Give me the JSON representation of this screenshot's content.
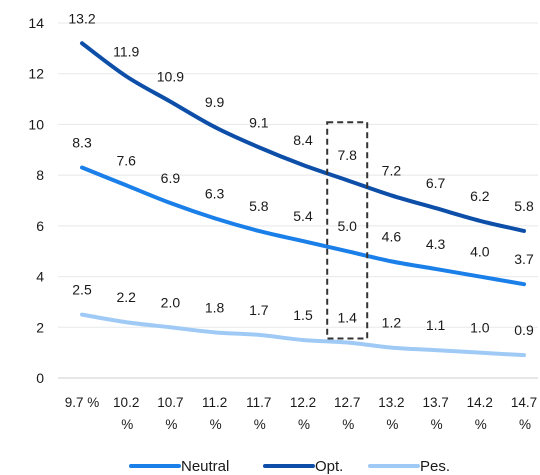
{
  "chart_data": {
    "type": "line",
    "x": [
      "9.7 %",
      "10.2 %",
      "10.7 %",
      "11.2 %",
      "11.7 %",
      "12.2 %",
      "12.7 %",
      "13.2 %",
      "13.7 %",
      "14.2 %",
      "14.7 %"
    ],
    "series": [
      {
        "name": "Neutral",
        "color": "#1a7fe8",
        "values": [
          8.3,
          7.6,
          6.9,
          6.3,
          5.8,
          5.4,
          5.0,
          4.6,
          4.3,
          4.0,
          3.7
        ],
        "labels": [
          "8.3",
          "7.6",
          "6.9",
          "6.3",
          "5.8",
          "5.4",
          "5.0",
          "4.6",
          "4.3",
          "4.0",
          "3.7"
        ]
      },
      {
        "name": "Opt.",
        "color": "#0d4fa8",
        "values": [
          13.2,
          11.9,
          10.9,
          9.9,
          9.1,
          8.4,
          7.8,
          7.2,
          6.7,
          6.2,
          5.8
        ],
        "labels": [
          "13.2",
          "11.9",
          "10.9",
          "9.9",
          "9.1",
          "8.4",
          "7.8",
          "7.2",
          "6.7",
          "6.2",
          "5.8"
        ]
      },
      {
        "name": "Pes.",
        "color": "#9fcaf5",
        "values": [
          2.5,
          2.2,
          2.0,
          1.8,
          1.7,
          1.5,
          1.4,
          1.2,
          1.1,
          1.0,
          0.9
        ],
        "labels": [
          "2.5",
          "2.2",
          "2.0",
          "1.8",
          "1.7",
          "1.5",
          "1.4",
          "1.2",
          "1.1",
          "1.0",
          "0.9"
        ]
      }
    ],
    "yticks": [
      0,
      2,
      4,
      6,
      8,
      10,
      12,
      14
    ],
    "ytick_labels": [
      "0",
      "2",
      "4",
      "6",
      "8",
      "10",
      "12",
      "14"
    ],
    "ylim": [
      0,
      14
    ],
    "grid": true,
    "legend_position": "bottom",
    "highlight": {
      "x": "12.7 %",
      "style": "dashed-box"
    },
    "title": "",
    "xlabel": "",
    "ylabel": ""
  }
}
